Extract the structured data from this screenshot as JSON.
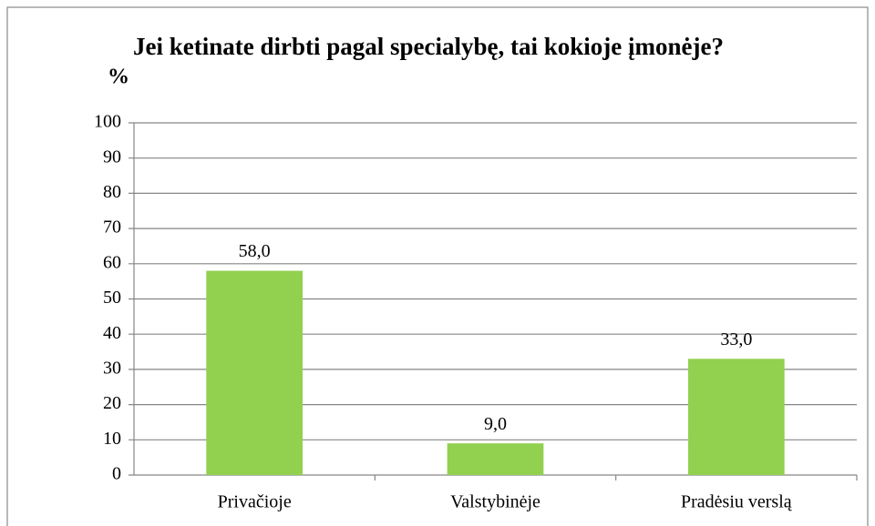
{
  "chart_data": {
    "type": "bar",
    "title": "Jei ketinate dirbti pagal specialybę, tai kokioje įmonėje?",
    "y_label": "%",
    "categories": [
      "Privačioje",
      "Valstybinėje",
      "Pradėsiu verslą"
    ],
    "values": [
      58,
      9,
      33
    ],
    "value_labels": [
      "58,0",
      "9,0",
      "33,0"
    ],
    "color": "#92d050",
    "ylim": [
      0,
      100
    ],
    "yticks": [
      0,
      10,
      20,
      30,
      40,
      50,
      60,
      70,
      80,
      90,
      100
    ],
    "grid": true
  }
}
